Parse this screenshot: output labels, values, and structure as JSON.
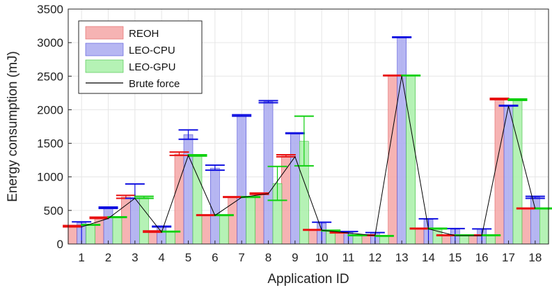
{
  "chart_data": {
    "type": "bar",
    "title": "",
    "xlabel": "Application ID",
    "ylabel": "Energy consumption (mJ)",
    "ylim": [
      0,
      3500
    ],
    "yticks": [
      0,
      500,
      1000,
      1500,
      2000,
      2500,
      3000,
      3500
    ],
    "grid": true,
    "legend_position": "top-left",
    "categories": [
      "1",
      "2",
      "3",
      "4",
      "5",
      "6",
      "7",
      "8",
      "9",
      "10",
      "11",
      "12",
      "13",
      "14",
      "15",
      "16",
      "17",
      "18"
    ],
    "series": [
      {
        "name": "REOH",
        "color": "#f4a6a6",
        "edge": "#e06060",
        "errColor": "#e81010",
        "values": [
          265,
          390,
          700,
          185,
          1340,
          430,
          700,
          750,
          1310,
          210,
          170,
          130,
          2510,
          230,
          130,
          130,
          2160,
          530
        ],
        "err_low": [
          255,
          380,
          680,
          175,
          1320,
          425,
          695,
          740,
          1300,
          205,
          165,
          125,
          2505,
          225,
          125,
          125,
          2150,
          525
        ],
        "err_high": [
          275,
          400,
          725,
          195,
          1370,
          435,
          705,
          760,
          1330,
          215,
          175,
          135,
          2515,
          235,
          135,
          135,
          2170,
          535
        ]
      },
      {
        "name": "LEO-CPU",
        "color": "#a9a9f0",
        "edge": "#5050d8",
        "errColor": "#1010e0",
        "values": [
          320,
          540,
          690,
          260,
          1630,
          1130,
          1910,
          2120,
          1650,
          310,
          175,
          165,
          3080,
          365,
          220,
          220,
          2060,
          700
        ],
        "err_low": [
          0,
          530,
          680,
          255,
          1560,
          1100,
          1905,
          2105,
          1645,
          0,
          0,
          0,
          3075,
          0,
          0,
          0,
          2055,
          680
        ],
        "err_high": [
          330,
          550,
          895,
          265,
          1700,
          1175,
          1925,
          2135,
          1655,
          325,
          185,
          170,
          3085,
          375,
          230,
          225,
          2065,
          710
        ]
      },
      {
        "name": "LEO-GPU",
        "color": "#a8f0a8",
        "edge": "#40c040",
        "errColor": "#10d010",
        "values": [
          285,
          400,
          690,
          185,
          1320,
          430,
          700,
          900,
          1530,
          200,
          130,
          120,
          2510,
          230,
          130,
          130,
          2150,
          530
        ],
        "err_low": [
          280,
          395,
          680,
          180,
          1310,
          425,
          695,
          650,
          1165,
          195,
          125,
          115,
          2505,
          225,
          125,
          125,
          2140,
          525
        ],
        "err_high": [
          290,
          405,
          710,
          190,
          1330,
          435,
          705,
          1155,
          1905,
          205,
          135,
          125,
          2515,
          235,
          135,
          135,
          2160,
          535
        ]
      },
      {
        "name": "Brute force",
        "type": "line",
        "color": "#000000",
        "values": [
          255,
          380,
          680,
          175,
          1320,
          425,
          695,
          750,
          1300,
          205,
          165,
          125,
          2505,
          225,
          125,
          125,
          2055,
          525
        ]
      }
    ]
  }
}
